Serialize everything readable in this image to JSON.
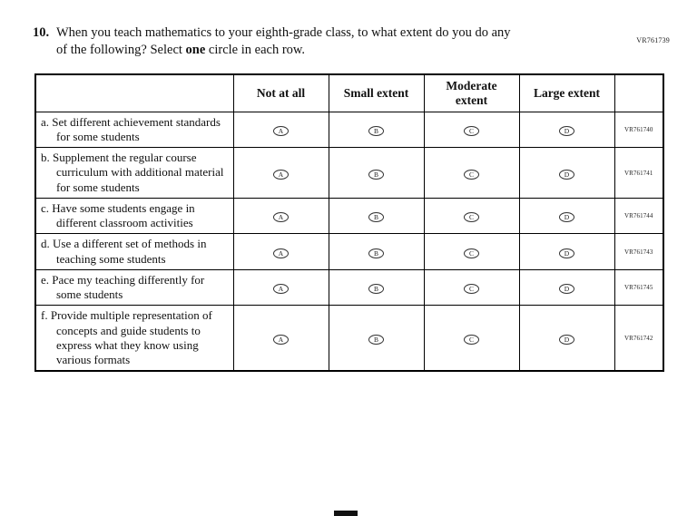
{
  "page": {
    "vr_top": "VR761739"
  },
  "question": {
    "number": "10.",
    "line1": "When you teach mathematics to your eighth-grade class, to what extent do you do any",
    "line2_pre": "of the following? Select ",
    "line2_bold": "one",
    "line2_post": " circle in each row."
  },
  "table": {
    "headers": [
      "Not at all",
      "Small extent",
      "Moderate extent",
      "Large extent"
    ],
    "option_letters": [
      "A",
      "B",
      "C",
      "D"
    ],
    "rows": [
      {
        "prefix": "a.",
        "label": "Set different achievement standards for some students",
        "vr": "VR761740"
      },
      {
        "prefix": "b.",
        "label": "Supplement the regular course curriculum with additional material for some students",
        "vr": "VR761741"
      },
      {
        "prefix": "c.",
        "label": "Have some students engage in different classroom activities",
        "vr": "VR761744"
      },
      {
        "prefix": "d.",
        "label": "Use a different set of methods in teaching some students",
        "vr": "VR761743"
      },
      {
        "prefix": "e.",
        "label": "Pace my teaching differently for some students",
        "vr": "VR761745"
      },
      {
        "prefix": "f.",
        "label": "Provide multiple representation of concepts and guide students to express what they know using various formats",
        "vr": "VR761742"
      }
    ]
  }
}
